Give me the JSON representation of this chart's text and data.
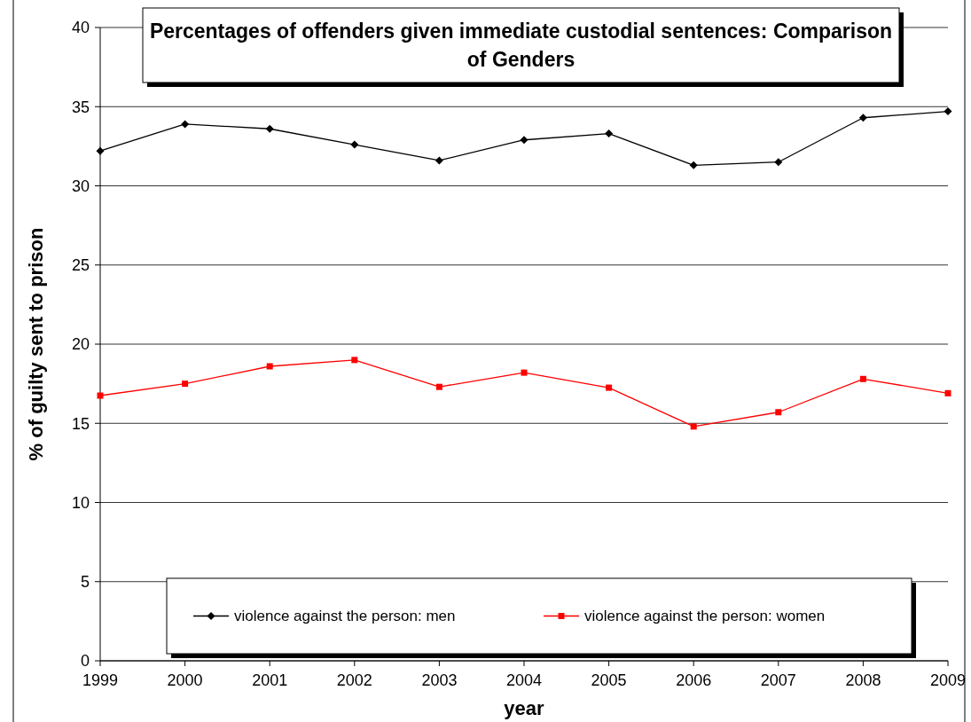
{
  "chart_data": {
    "type": "line",
    "title": "Percentages of offenders given immediate custodial sentences: Comparison of Genders",
    "xlabel": "year",
    "ylabel": "% of guilty sent to prison",
    "x": [
      1999,
      2000,
      2001,
      2002,
      2003,
      2004,
      2005,
      2006,
      2007,
      2008,
      2009
    ],
    "xlim": [
      1999,
      2009
    ],
    "xticks": [
      1999,
      2000,
      2001,
      2002,
      2003,
      2004,
      2005,
      2006,
      2007,
      2008,
      2009
    ],
    "ylim": [
      0,
      40
    ],
    "yticks": [
      0,
      5,
      10,
      15,
      20,
      25,
      30,
      35,
      40
    ],
    "grid": "y",
    "legend": "bottom",
    "series": [
      {
        "name": "violence against the person: men",
        "color": "#000000",
        "marker": "diamond",
        "values": [
          32.2,
          33.9,
          33.6,
          32.6,
          31.6,
          32.9,
          33.3,
          31.3,
          31.5,
          34.3,
          34.7
        ]
      },
      {
        "name": "violence against the person: women",
        "color": "#ff0000",
        "marker": "square",
        "values": [
          16.75,
          17.5,
          18.6,
          19.0,
          17.3,
          18.2,
          17.25,
          14.8,
          15.7,
          17.8,
          16.9
        ]
      }
    ]
  }
}
